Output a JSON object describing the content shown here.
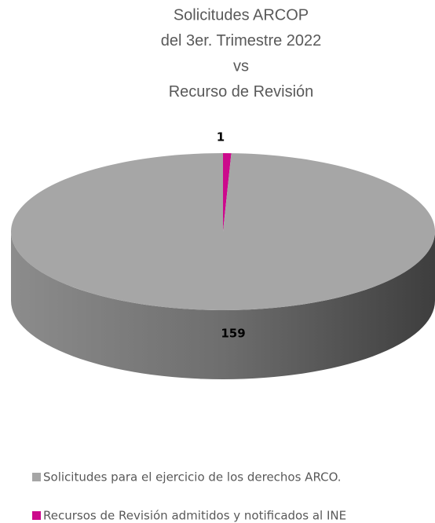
{
  "chart_data": {
    "type": "pie",
    "title": [
      "Solicitudes ARCOP",
      "del 3er. Trimestre 2022",
      "vs",
      "Recurso de Revisión"
    ],
    "categories": [
      "Solicitudes para el ejercicio de los derechos ARCO.",
      "Recursos de Revisión admitidos y notificados al INE"
    ],
    "values": [
      159,
      1
    ],
    "colors": [
      "#a6a6a6",
      "#cc0a8c"
    ],
    "legend": "bottom"
  }
}
